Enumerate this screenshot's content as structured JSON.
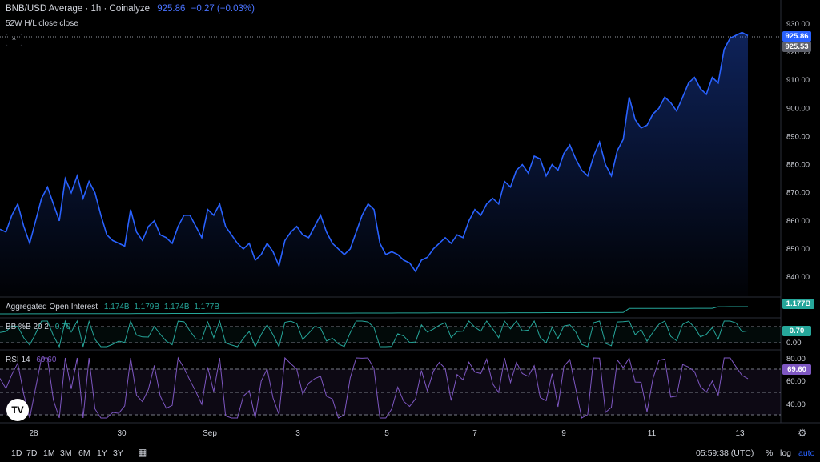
{
  "header": {
    "title": "BNB/USD Average · 1h · Coinalyze",
    "price": "925.86",
    "change": "−0.27 (−0.03%)",
    "subtitle": "52W H/L close close",
    "collapse_symbol": "^"
  },
  "main_pane": {
    "last_price_tag": "925.86",
    "prev_close_tag": "925.53",
    "y_ticks": [
      "930.00",
      "920.00",
      "910.00",
      "900.00",
      "890.00",
      "880.00",
      "870.00",
      "860.00",
      "850.00",
      "840.00"
    ],
    "line_color": "#2962ff"
  },
  "oi_pane": {
    "label": "Aggregated Open Interest",
    "values": [
      "1.174B",
      "1.179B",
      "1.174B",
      "1.177B"
    ],
    "tag": "1.177B",
    "color": "#26a69a"
  },
  "bb_pane": {
    "label": "BB %B 20 2",
    "value": "0.70",
    "tag": "0.70",
    "y_ticks": [
      "0.00"
    ],
    "color": "#26a69a"
  },
  "rsi_pane": {
    "label": "RSI 14",
    "value": "69.60",
    "tag": "69.60",
    "y_ticks": [
      "80.00",
      "60.00",
      "40.00"
    ],
    "color": "#7e57c2"
  },
  "x_ticks": [
    "28",
    "30",
    "Sep",
    "3",
    "5",
    "7",
    "9",
    "11",
    "13"
  ],
  "bottom_bar": {
    "ranges": [
      "1D",
      "7D",
      "1M",
      "3M",
      "6M",
      "1Y",
      "3Y"
    ],
    "calendar_icon": "calendar-icon",
    "time": "05:59:38 (UTC)",
    "percent": "%",
    "log": "log",
    "auto": "auto"
  },
  "chart_data": {
    "type": "line",
    "title": "BNB/USD Average · 1h · Coinalyze",
    "ylim": [
      836,
      934
    ],
    "x_labels": [
      "28",
      "30",
      "Sep",
      "3",
      "5",
      "7",
      "9",
      "11",
      "13"
    ],
    "series": [
      {
        "name": "BNB/USD Average",
        "values": [
          857,
          856,
          862,
          866,
          858,
          852,
          860,
          868,
          872,
          866,
          860,
          875,
          870,
          876,
          868,
          874,
          870,
          862,
          855,
          853,
          852,
          851,
          864,
          856,
          853,
          858,
          860,
          855,
          854,
          852,
          858,
          862,
          862,
          858,
          854,
          864,
          862,
          866,
          858,
          855,
          852,
          850,
          852,
          846,
          848,
          852,
          849,
          844,
          853,
          856,
          858,
          855,
          854,
          858,
          862,
          856,
          852,
          850,
          848,
          850,
          856,
          862,
          866,
          864,
          852,
          848,
          849,
          848,
          846,
          845,
          842,
          846,
          847,
          850,
          852,
          854,
          852,
          855,
          854,
          860,
          864,
          862,
          866,
          868,
          866,
          874,
          872,
          878,
          880,
          877,
          883,
          882,
          876,
          880,
          878,
          884,
          887,
          882,
          878,
          876,
          883,
          888,
          880,
          876,
          885,
          889,
          904,
          896,
          893,
          894,
          898,
          900,
          904,
          902,
          899,
          904,
          909,
          911,
          907,
          905,
          911,
          909,
          921,
          925,
          926,
          927,
          925.86
        ]
      }
    ],
    "oi_values": [
      "1.174B",
      "1.179B",
      "1.174B",
      "1.177B"
    ],
    "bb_percent_b": 0.7,
    "rsi": 69.6
  }
}
